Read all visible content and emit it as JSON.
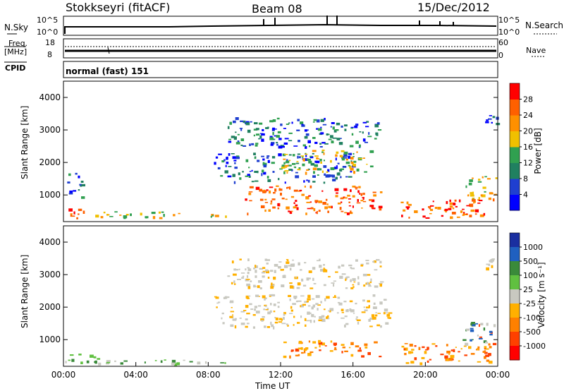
{
  "header": {
    "station": "Stokkseyri (fitACF)",
    "beam": "Beam 08",
    "date": "15/Dec/2012"
  },
  "nsky_panel": {
    "left_label": "N.Sky",
    "right_label": "N.Search",
    "left_ticks": [
      "10^5",
      "10^0"
    ],
    "right_ticks": [
      "10^5",
      "10^0"
    ]
  },
  "freq_panel": {
    "left_label": "Freq.",
    "left_unit": "[MHz]",
    "left_ticks": [
      "18",
      "8"
    ],
    "right_label": "Nave",
    "right_ticks": [
      "60",
      "0"
    ]
  },
  "cpid_panel": {
    "label": "CPID",
    "value": "normal (fast) 151"
  },
  "chart_data": [
    {
      "type": "heatmap",
      "name": "power",
      "xlabel": "",
      "ylabel": "Slant Range [km]",
      "xlim_hours": [
        0,
        24
      ],
      "ylim_km": [
        180,
        4500
      ],
      "x_ticks": [
        "00:00",
        "04:00",
        "08:00",
        "12:00",
        "16:00",
        "20:00",
        "00:00"
      ],
      "y_ticks": [
        1000,
        2000,
        3000,
        4000
      ],
      "colorbar": {
        "label": "Power [dB]",
        "ticks": [
          4,
          8,
          12,
          16,
          20,
          24,
          28
        ],
        "colors": [
          "#0000ff",
          "#1f3fd0",
          "#208060",
          "#30a050",
          "#f0c000",
          "#ff9000",
          "#ff6000",
          "#ff0000"
        ]
      },
      "patches": [
        {
          "t0": 0.0,
          "t1": 1.6,
          "r0": 300,
          "r1": 600,
          "level": "strong"
        },
        {
          "t0": 0.2,
          "t1": 1.0,
          "r0": 900,
          "r1": 1700,
          "level": "weak"
        },
        {
          "t0": 1.6,
          "t1": 9.0,
          "r0": 300,
          "r1": 500,
          "level": "medium"
        },
        {
          "t0": 8.3,
          "t1": 16.0,
          "r0": 1400,
          "r1": 2300,
          "level": "weak"
        },
        {
          "t0": 10.0,
          "t1": 17.5,
          "r0": 450,
          "r1": 1300,
          "level": "strong"
        },
        {
          "t0": 12.0,
          "t1": 17.0,
          "r0": 1700,
          "r1": 2400,
          "level": "medium"
        },
        {
          "t0": 9.0,
          "t1": 17.5,
          "r0": 2500,
          "r1": 3400,
          "level": "weak"
        },
        {
          "t0": 18.5,
          "t1": 23.8,
          "r0": 300,
          "r1": 900,
          "level": "strong"
        },
        {
          "t0": 22.0,
          "t1": 23.9,
          "r0": 900,
          "r1": 1600,
          "level": "medium"
        },
        {
          "t0": 23.3,
          "t1": 23.9,
          "r0": 3200,
          "r1": 3500,
          "level": "weak"
        }
      ]
    },
    {
      "type": "heatmap",
      "name": "velocity",
      "xlabel": "Time UT",
      "ylabel": "Slant Range [km]",
      "xlim_hours": [
        0,
        24
      ],
      "ylim_km": [
        180,
        4500
      ],
      "x_ticks": [
        "00:00",
        "04:00",
        "08:00",
        "12:00",
        "16:00",
        "20:00",
        "00:00"
      ],
      "y_ticks": [
        1000,
        2000,
        3000,
        4000
      ],
      "colorbar": {
        "label": "Velocity [m s⁻¹]",
        "ticks": [
          1000,
          500,
          100,
          25,
          -25,
          -100,
          -500,
          -1000
        ],
        "colors": [
          "#1a2fa0",
          "#2060c0",
          "#3a8a3a",
          "#60c040",
          "#c8c8c0",
          "#ffb000",
          "#ff8000",
          "#ff4000",
          "#ff0000"
        ]
      },
      "patches": [
        {
          "t0": 0.0,
          "t1": 2.0,
          "r0": 250,
          "r1": 600,
          "level": "green"
        },
        {
          "t0": 2.0,
          "t1": 9.0,
          "r0": 250,
          "r1": 400,
          "level": "green"
        },
        {
          "t0": 8.3,
          "t1": 18.0,
          "r0": 1400,
          "r1": 2400,
          "level": "grey"
        },
        {
          "t0": 9.0,
          "t1": 17.5,
          "r0": 2600,
          "r1": 3500,
          "level": "grey"
        },
        {
          "t0": 12.0,
          "t1": 17.5,
          "r0": 500,
          "r1": 1000,
          "level": "orange"
        },
        {
          "t0": 18.5,
          "t1": 23.8,
          "r0": 300,
          "r1": 900,
          "level": "orange"
        },
        {
          "t0": 22.0,
          "t1": 23.9,
          "r0": 900,
          "r1": 1600,
          "level": "mixed"
        },
        {
          "t0": 23.3,
          "t1": 23.9,
          "r0": 3200,
          "r1": 3500,
          "level": "grey"
        }
      ]
    }
  ]
}
